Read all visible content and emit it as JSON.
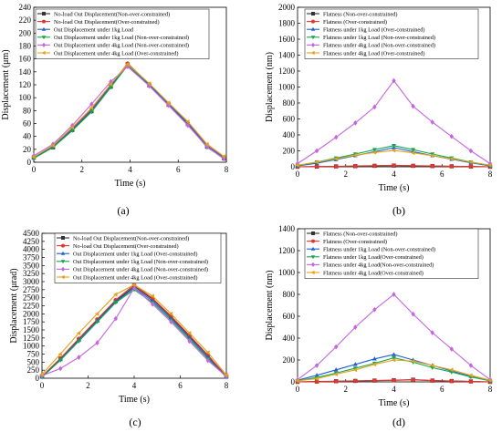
{
  "chart_data": [
    {
      "panel": "a",
      "caption": "(a)",
      "type": "line",
      "xlabel": "Time (s)",
      "ylabel": "Displacement (μm)",
      "xlim": [
        0,
        8
      ],
      "ylim": [
        0,
        240
      ],
      "xticks": [
        "0",
        "2",
        "4",
        "6",
        "8"
      ],
      "yticks": [
        "0",
        "20",
        "40",
        "60",
        "80",
        "100",
        "120",
        "140",
        "160",
        "180",
        "200",
        "220",
        "240"
      ],
      "legend_position": "top-left",
      "x": [
        0,
        0.8,
        1.6,
        2.4,
        3.2,
        3.9,
        4.8,
        5.6,
        6.4,
        7.2,
        7.9
      ],
      "series": [
        {
          "name": "No-load Out Displacement(Non-over-constrained)",
          "color": "#333333",
          "marker": "square",
          "values": [
            7,
            23,
            50,
            79,
            117,
            152,
            119,
            89,
            59,
            24,
            6
          ]
        },
        {
          "name": "No-load Out Displacement(Over-constrained)",
          "color": "#e8332a",
          "marker": "circle",
          "values": [
            8,
            25,
            52,
            82,
            120,
            153,
            121,
            91,
            61,
            26,
            7
          ]
        },
        {
          "name": "Out Displacement under 1kg Load",
          "color": "#1f5fd6",
          "marker": "triangle-up",
          "values": [
            7,
            24,
            51,
            80,
            118,
            151,
            120,
            90,
            60,
            25,
            7
          ]
        },
        {
          "name": "Out Displacement under 1kg Load (Non-over-constrained)",
          "color": "#14a64a",
          "marker": "triangle-down",
          "values": [
            6,
            23,
            49,
            78,
            116,
            150,
            118,
            88,
            58,
            23,
            6
          ]
        },
        {
          "name": "Out Displacement under 4kg Load (Non-over-constrained)",
          "color": "#c765e0",
          "marker": "diamond",
          "values": [
            10,
            28,
            57,
            90,
            125,
            148,
            118,
            88,
            57,
            24,
            5
          ]
        },
        {
          "name": "Out Displacement under 4kg Load (Over-constrained)",
          "color": "#e3a21a",
          "marker": "triangle-left",
          "values": [
            8,
            26,
            54,
            84,
            121,
            152,
            122,
            92,
            63,
            28,
            9
          ]
        }
      ]
    },
    {
      "panel": "b",
      "caption": "(b)",
      "type": "line",
      "xlabel": "Time (s)",
      "ylabel": "Displacement (nm)",
      "xlim": [
        0,
        8
      ],
      "ylim": [
        0,
        2000
      ],
      "xticks": [
        "0",
        "2",
        "4",
        "6",
        "8"
      ],
      "yticks": [
        "0",
        "200",
        "400",
        "600",
        "800",
        "1000",
        "1200",
        "1400",
        "1600",
        "1800",
        "2000"
      ],
      "legend_position": "top-right",
      "x": [
        0,
        0.8,
        1.6,
        2.4,
        3.2,
        4.0,
        4.8,
        5.6,
        6.4,
        7.2,
        8.0
      ],
      "series": [
        {
          "name": "Flatness (Non-over-constrained)",
          "color": "#333333",
          "marker": "square",
          "values": [
            0,
            2,
            5,
            8,
            12,
            15,
            12,
            9,
            6,
            3,
            0
          ]
        },
        {
          "name": "Flatness  (Over-constrained)",
          "color": "#e8332a",
          "marker": "circle",
          "values": [
            0,
            3,
            6,
            10,
            14,
            18,
            14,
            10,
            7,
            3,
            0
          ]
        },
        {
          "name": "Flatness under 1kg Load (Over-constrained)",
          "color": "#1f5fd6",
          "marker": "triangle-up",
          "values": [
            10,
            45,
            90,
            140,
            190,
            240,
            190,
            140,
            95,
            50,
            10
          ]
        },
        {
          "name": "Flatness under 1kg Load (Non-over-constrained)",
          "color": "#14a64a",
          "marker": "triangle-down",
          "values": [
            15,
            60,
            110,
            160,
            215,
            265,
            215,
            160,
            110,
            60,
            15
          ]
        },
        {
          "name": "Flatness under 4kg Load (Non-over-constrained)",
          "color": "#c765e0",
          "marker": "diamond",
          "values": [
            40,
            200,
            370,
            550,
            750,
            1080,
            760,
            560,
            380,
            200,
            40
          ]
        },
        {
          "name": "Flatness under 4kg Load (Over-constrained)",
          "color": "#e3a21a",
          "marker": "triangle-left",
          "values": [
            20,
            60,
            100,
            145,
            180,
            205,
            175,
            140,
            100,
            60,
            20
          ]
        }
      ]
    },
    {
      "panel": "c",
      "caption": "(c)",
      "type": "line",
      "xlabel": "Time (s)",
      "ylabel": "Displacement (μrad)",
      "xlim": [
        0,
        8
      ],
      "ylim": [
        0,
        4500
      ],
      "xticks": [
        "0",
        "2",
        "4",
        "6",
        "8"
      ],
      "yticks": [
        "0",
        "250",
        "500",
        "750",
        "1000",
        "1250",
        "1500",
        "1750",
        "2000",
        "2250",
        "2500",
        "2750",
        "3000",
        "3250",
        "3500",
        "3750",
        "4000",
        "4250",
        "4500"
      ],
      "legend_position": "top-right",
      "x": [
        0,
        0.8,
        1.6,
        2.4,
        3.2,
        4.0,
        4.8,
        5.6,
        6.4,
        7.2,
        8.0
      ],
      "series": [
        {
          "name": "No-load Out Displacement(Non-over-constrained)",
          "color": "#333333",
          "marker": "square",
          "values": [
            50,
            600,
            1200,
            1800,
            2400,
            2850,
            2450,
            1900,
            1300,
            700,
            50
          ]
        },
        {
          "name": "No-load Out Displacement(Over-constrained)",
          "color": "#e8332a",
          "marker": "circle",
          "values": [
            60,
            620,
            1230,
            1830,
            2430,
            2900,
            2480,
            1930,
            1330,
            720,
            60
          ]
        },
        {
          "name": "Out Displacement under 1kg Load (Over-constrained)",
          "color": "#1f5fd6",
          "marker": "triangle-up",
          "values": [
            40,
            580,
            1180,
            1780,
            2380,
            2800,
            2400,
            1850,
            1250,
            650,
            40
          ]
        },
        {
          "name": "Out Displacement under 1kg Load (Non-over-constrained)",
          "color": "#14a64a",
          "marker": "triangle-down",
          "values": [
            30,
            560,
            1150,
            1750,
            2350,
            2750,
            2350,
            1800,
            1200,
            600,
            30
          ]
        },
        {
          "name": "Out Displacement under 4kg Load (Non-over-constrained)",
          "color": "#c765e0",
          "marker": "diamond",
          "values": [
            80,
            300,
            650,
            1100,
            1850,
            2800,
            2300,
            1750,
            1150,
            550,
            60
          ]
        },
        {
          "name": "Out Displacement under 4kg Load (Over-constrained)",
          "color": "#e3a21a",
          "marker": "triangle-left",
          "values": [
            120,
            750,
            1400,
            2000,
            2600,
            2900,
            2550,
            2000,
            1400,
            800,
            100
          ]
        }
      ]
    },
    {
      "panel": "d",
      "caption": "(d)",
      "type": "line",
      "xlabel": "Time (s)",
      "ylabel": "Displacement (nm)",
      "xlim": [
        0,
        8
      ],
      "ylim": [
        0,
        1400
      ],
      "xticks": [
        "0",
        "2",
        "4",
        "6",
        "8"
      ],
      "yticks": [
        "0",
        "200",
        "400",
        "600",
        "800",
        "1000",
        "1200",
        "1400"
      ],
      "legend_position": "top-right",
      "x": [
        0,
        0.8,
        1.6,
        2.4,
        3.2,
        4.0,
        4.8,
        5.6,
        6.4,
        7.2,
        8.0
      ],
      "series": [
        {
          "name": "Flatness (Non-over-constrained)",
          "color": "#333333",
          "marker": "square",
          "values": [
            0,
            3,
            6,
            9,
            12,
            15,
            20,
            12,
            8,
            4,
            0
          ]
        },
        {
          "name": "Flatness  (Over-constrained)",
          "color": "#e8332a",
          "marker": "circle",
          "values": [
            0,
            2,
            5,
            8,
            11,
            14,
            18,
            11,
            7,
            3,
            0
          ]
        },
        {
          "name": "Flatness under 1kg Load (Non-over-constrained)",
          "color": "#1f5fd6",
          "marker": "triangle-up",
          "values": [
            15,
            60,
            110,
            160,
            210,
            250,
            200,
            150,
            100,
            50,
            10
          ]
        },
        {
          "name": "Flatness under 1kg Load(Over-constrained)",
          "color": "#14a64a",
          "marker": "triangle-down",
          "values": [
            10,
            40,
            80,
            125,
            170,
            220,
            180,
            130,
            90,
            45,
            10
          ]
        },
        {
          "name": "Flatness under 4kg Load(Non-over-constrained)",
          "color": "#c765e0",
          "marker": "diamond",
          "values": [
            20,
            150,
            320,
            500,
            660,
            800,
            620,
            450,
            300,
            150,
            20
          ]
        },
        {
          "name": "Flatness under 4kg Load(Over-constrained)",
          "color": "#e3a21a",
          "marker": "triangle-left",
          "values": [
            10,
            30,
            70,
            110,
            160,
            200,
            190,
            150,
            110,
            60,
            15
          ]
        }
      ]
    }
  ]
}
